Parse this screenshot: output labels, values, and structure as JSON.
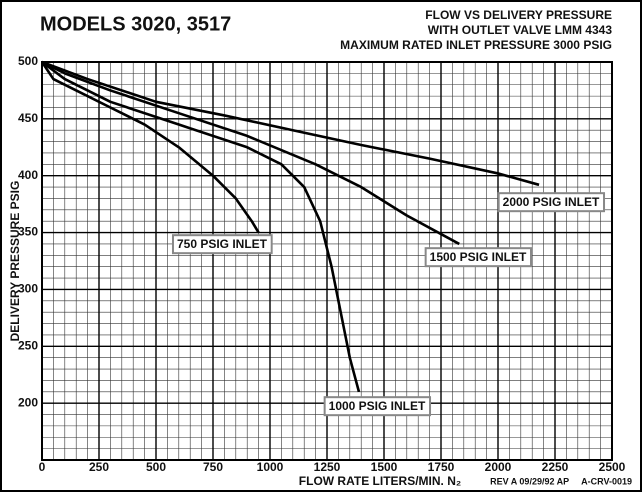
{
  "chart_data": {
    "type": "line",
    "title": "MODELS 3020, 3517",
    "subtitle": [
      "FLOW VS DELIVERY PRESSURE",
      "WITH OUTLET VALVE LMM 4343",
      "MAXIMUM RATED INLET PRESSURE 3000 PSIG"
    ],
    "x_label": "FLOW RATE LITERS/MIN. N₂",
    "y_label": "DELIVERY PRESSURE PSIG",
    "footer": "REV A 09/29/92 AP     A-CRV-0019",
    "xlim": [
      0,
      2500
    ],
    "ylim": [
      150,
      500
    ],
    "xticks": [
      0,
      250,
      500,
      750,
      1000,
      1250,
      1500,
      1750,
      2000,
      2250,
      2500
    ],
    "yticks": [
      200,
      250,
      300,
      350,
      400,
      450,
      500
    ],
    "grid": true,
    "series": [
      {
        "name": "750 PSIG INLET",
        "color": "#000000",
        "x": [
          0,
          50,
          150,
          300,
          450,
          600,
          750,
          850,
          920,
          950
        ],
        "values": [
          500,
          485,
          475,
          460,
          445,
          425,
          400,
          380,
          360,
          350
        ]
      },
      {
        "name": "1000 PSIG INLET",
        "color": "#000000",
        "x": [
          0,
          100,
          300,
          600,
          900,
          1050,
          1150,
          1220,
          1270,
          1310,
          1350,
          1390
        ],
        "values": [
          500,
          485,
          465,
          445,
          425,
          410,
          390,
          360,
          320,
          280,
          240,
          210
        ]
      },
      {
        "name": "1500 PSIG INLET",
        "color": "#000000",
        "x": [
          0,
          100,
          300,
          600,
          900,
          1200,
          1400,
          1600,
          1830
        ],
        "values": [
          500,
          490,
          475,
          455,
          435,
          410,
          390,
          365,
          340
        ]
      },
      {
        "name": "2000 PSIG INLET",
        "color": "#000000",
        "x": [
          0,
          200,
          500,
          800,
          1100,
          1400,
          1700,
          2000,
          2180
        ],
        "values": [
          500,
          485,
          465,
          453,
          440,
          427,
          415,
          402,
          392
        ]
      }
    ]
  }
}
